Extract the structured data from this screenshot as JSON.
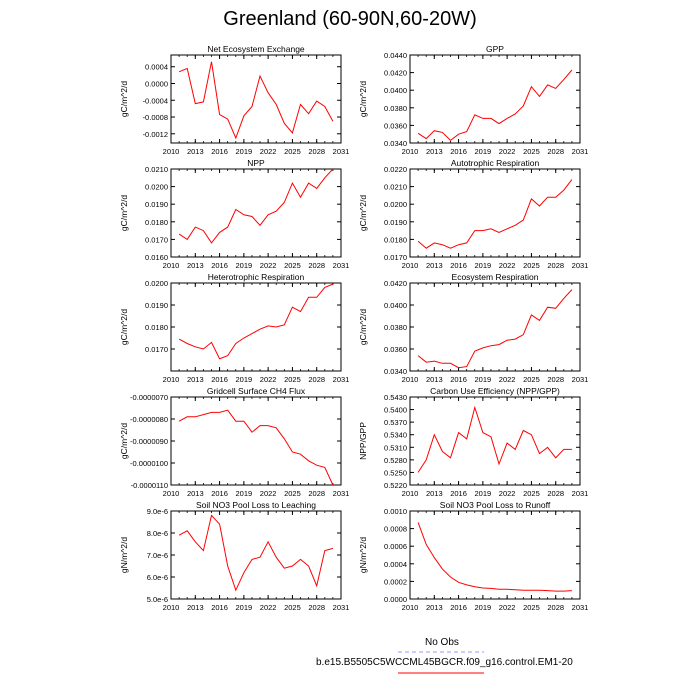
{
  "main_title": "Greenland (60-90N,60-20W)",
  "legend": {
    "obs_label": "No Obs",
    "obs_color": "#9999ff",
    "model_label": "b.e15.B5505C5WCCML45BGCR.f09_g16.control.EM1-20",
    "model_color": "#ff0000"
  },
  "chart_data": [
    {
      "type": "line",
      "title": "Net Ecosystem Exchange",
      "xlabel": "",
      "ylabel": "gC/m^2/d",
      "xlim": [
        2010,
        2031
      ],
      "xticks": [
        2010,
        2013,
        2016,
        2019,
        2022,
        2025,
        2028,
        2031
      ],
      "ylim": [
        -0.00142,
        0.00068
      ],
      "yticks": [
        0.0004,
        0.0,
        -0.0004,
        -0.0008,
        -0.0012
      ],
      "ytick_labels": [
        "0.0004",
        "0.0000",
        "-0.0004",
        "-0.0008",
        "-0.0012"
      ],
      "x": [
        2011,
        2012,
        2013,
        2014,
        2015,
        2016,
        2017,
        2018,
        2019,
        2020,
        2021,
        2022,
        2023,
        2024,
        2025,
        2026,
        2027,
        2028,
        2029,
        2030
      ],
      "series": [
        {
          "name": "b.e15.B5505C5WCCML45BGCR.f09_g16.control.EM1-20",
          "values": [
            0.00028,
            0.00036,
            -0.00048,
            -0.00044,
            0.00052,
            -0.00074,
            -0.00085,
            -0.0013,
            -0.00077,
            -0.00055,
            0.00018,
            -0.00022,
            -0.0005,
            -0.00095,
            -0.00118,
            -0.0005,
            -0.00072,
            -0.00042,
            -0.00055,
            -0.0009
          ]
        }
      ]
    },
    {
      "type": "line",
      "title": "GPP",
      "xlabel": "",
      "ylabel": "gC/m^2/d",
      "xlim": [
        2010,
        2031
      ],
      "xticks": [
        2010,
        2013,
        2016,
        2019,
        2022,
        2025,
        2028,
        2031
      ],
      "ylim": [
        0.034,
        0.044
      ],
      "yticks": [
        0.044,
        0.042,
        0.04,
        0.038,
        0.036,
        0.034
      ],
      "ytick_labels": [
        "0.0440",
        "0.0420",
        "0.0400",
        "0.0380",
        "0.0360",
        "0.0340"
      ],
      "x": [
        2011,
        2012,
        2013,
        2014,
        2015,
        2016,
        2017,
        2018,
        2019,
        2020,
        2021,
        2022,
        2023,
        2024,
        2025,
        2026,
        2027,
        2028,
        2029,
        2030
      ],
      "series": [
        {
          "name": "b.e15.B5505C5WCCML45BGCR.f09_g16.control.EM1-20",
          "values": [
            0.0351,
            0.0345,
            0.0354,
            0.0352,
            0.0343,
            0.035,
            0.0353,
            0.0372,
            0.0368,
            0.0368,
            0.0362,
            0.0368,
            0.0373,
            0.0382,
            0.0404,
            0.0393,
            0.0406,
            0.0402,
            0.0412,
            0.0423
          ]
        }
      ]
    },
    {
      "type": "line",
      "title": "NPP",
      "xlabel": "",
      "ylabel": "gC/m^2/d",
      "xlim": [
        2010,
        2031
      ],
      "xticks": [
        2010,
        2013,
        2016,
        2019,
        2022,
        2025,
        2028,
        2031
      ],
      "ylim": [
        0.016,
        0.021
      ],
      "yticks": [
        0.021,
        0.02,
        0.019,
        0.018,
        0.017,
        0.016
      ],
      "ytick_labels": [
        "0.0210",
        "0.0200",
        "0.0190",
        "0.0180",
        "0.0170",
        "0.0160"
      ],
      "x": [
        2011,
        2012,
        2013,
        2014,
        2015,
        2016,
        2017,
        2018,
        2019,
        2020,
        2021,
        2022,
        2023,
        2024,
        2025,
        2026,
        2027,
        2028,
        2029,
        2030
      ],
      "series": [
        {
          "name": "b.e15.B5505C5WCCML45BGCR.f09_g16.control.EM1-20",
          "values": [
            0.0173,
            0.017,
            0.0177,
            0.0175,
            0.0168,
            0.0174,
            0.0177,
            0.0187,
            0.0184,
            0.0183,
            0.0178,
            0.0184,
            0.0186,
            0.0191,
            0.0202,
            0.0194,
            0.0202,
            0.0199,
            0.0205,
            0.021
          ]
        }
      ]
    },
    {
      "type": "line",
      "title": "Autotrophic Respiration",
      "xlabel": "",
      "ylabel": "gC/m^2/d",
      "xlim": [
        2010,
        2031
      ],
      "xticks": [
        2010,
        2013,
        2016,
        2019,
        2022,
        2025,
        2028,
        2031
      ],
      "ylim": [
        0.017,
        0.022
      ],
      "yticks": [
        0.022,
        0.021,
        0.02,
        0.019,
        0.018,
        0.017
      ],
      "ytick_labels": [
        "0.0220",
        "0.0210",
        "0.0200",
        "0.0190",
        "0.0180",
        "0.0170"
      ],
      "x": [
        2011,
        2012,
        2013,
        2014,
        2015,
        2016,
        2017,
        2018,
        2019,
        2020,
        2021,
        2022,
        2023,
        2024,
        2025,
        2026,
        2027,
        2028,
        2029,
        2030
      ],
      "series": [
        {
          "name": "b.e15.B5505C5WCCML45BGCR.f09_g16.control.EM1-20",
          "values": [
            0.0179,
            0.0175,
            0.0178,
            0.0177,
            0.0175,
            0.0177,
            0.0178,
            0.0185,
            0.0185,
            0.0186,
            0.0184,
            0.0186,
            0.0188,
            0.0191,
            0.0203,
            0.0199,
            0.0204,
            0.0204,
            0.0208,
            0.0214
          ]
        }
      ]
    },
    {
      "type": "line",
      "title": "Heterotrophic Respiration",
      "xlabel": "",
      "ylabel": "gC/m^2/d",
      "xlim": [
        2010,
        2031
      ],
      "xticks": [
        2010,
        2013,
        2016,
        2019,
        2022,
        2025,
        2028,
        2031
      ],
      "ylim": [
        0.016,
        0.02
      ],
      "yticks": [
        0.02,
        0.019,
        0.018,
        0.017
      ],
      "ytick_labels": [
        "0.0200",
        "0.0190",
        "0.0180",
        "0.0170"
      ],
      "x": [
        2011,
        2012,
        2013,
        2014,
        2015,
        2016,
        2017,
        2018,
        2019,
        2020,
        2021,
        2022,
        2023,
        2024,
        2025,
        2026,
        2027,
        2028,
        2029,
        2030
      ],
      "series": [
        {
          "name": "b.e15.B5505C5WCCML45BGCR.f09_g16.control.EM1-20",
          "values": [
            0.01745,
            0.01725,
            0.0171,
            0.017,
            0.0173,
            0.01655,
            0.0167,
            0.01725,
            0.0175,
            0.0177,
            0.0179,
            0.01805,
            0.018,
            0.0181,
            0.0189,
            0.0187,
            0.01935,
            0.01935,
            0.0198,
            0.01995
          ]
        }
      ]
    },
    {
      "type": "line",
      "title": "Ecosystem Respiration",
      "xlabel": "",
      "ylabel": "gC/m^2/d",
      "xlim": [
        2010,
        2031
      ],
      "xticks": [
        2010,
        2013,
        2016,
        2019,
        2022,
        2025,
        2028,
        2031
      ],
      "ylim": [
        0.034,
        0.042
      ],
      "yticks": [
        0.042,
        0.04,
        0.038,
        0.036,
        0.034
      ],
      "ytick_labels": [
        "0.0420",
        "0.0400",
        "0.0380",
        "0.0360",
        "0.0340"
      ],
      "x": [
        2011,
        2012,
        2013,
        2014,
        2015,
        2016,
        2017,
        2018,
        2019,
        2020,
        2021,
        2022,
        2023,
        2024,
        2025,
        2026,
        2027,
        2028,
        2029,
        2030
      ],
      "series": [
        {
          "name": "b.e15.B5505C5WCCML45BGCR.f09_g16.control.EM1-20",
          "values": [
            0.0354,
            0.0348,
            0.0349,
            0.0347,
            0.0347,
            0.0343,
            0.0344,
            0.0358,
            0.0361,
            0.0363,
            0.0364,
            0.0368,
            0.0369,
            0.0373,
            0.0391,
            0.0386,
            0.0398,
            0.0397,
            0.0406,
            0.0414
          ]
        }
      ]
    },
    {
      "type": "line",
      "title": "Gridcell Surface CH4 Flux",
      "xlabel": "",
      "ylabel": "gC/m^2/d",
      "xlim": [
        2010,
        2031
      ],
      "xticks": [
        2010,
        2013,
        2016,
        2019,
        2022,
        2025,
        2028,
        2031
      ],
      "ylim": [
        -1.1e-05,
        -7e-06
      ],
      "yticks": [
        -7e-06,
        -8e-06,
        -9e-06,
        -1e-05,
        -1.1e-05
      ],
      "ytick_labels": [
        "-0.0000070",
        "-0.0000080",
        "-0.0000090",
        "-0.0000100",
        "-0.0000110"
      ],
      "x": [
        2011,
        2012,
        2013,
        2014,
        2015,
        2016,
        2017,
        2018,
        2019,
        2020,
        2021,
        2022,
        2023,
        2024,
        2025,
        2026,
        2027,
        2028,
        2029,
        2030
      ],
      "series": [
        {
          "name": "b.e15.B5505C5WCCML45BGCR.f09_g16.control.EM1-20",
          "values": [
            -8.1e-06,
            -7.9e-06,
            -7.9e-06,
            -7.8e-06,
            -7.7e-06,
            -7.7e-06,
            -7.6e-06,
            -8.1e-06,
            -8.1e-06,
            -8.6e-06,
            -8.3e-06,
            -8.3e-06,
            -8.4e-06,
            -8.9e-06,
            -9.5e-06,
            -9.6e-06,
            -9.9e-06,
            -1.01e-05,
            -1.02e-05,
            -1.1e-05
          ]
        }
      ]
    },
    {
      "type": "line",
      "title": "Carbon Use Efficiency (NPP/GPP)",
      "xlabel": "",
      "ylabel": "NPP/GPP",
      "xlim": [
        2010,
        2031
      ],
      "xticks": [
        2010,
        2013,
        2016,
        2019,
        2022,
        2025,
        2028,
        2031
      ],
      "ylim": [
        0.522,
        0.543
      ],
      "yticks": [
        0.543,
        0.54,
        0.537,
        0.534,
        0.531,
        0.528,
        0.525,
        0.522
      ],
      "ytick_labels": [
        "0.5430",
        "0.5400",
        "0.5370",
        "0.5340",
        "0.5310",
        "0.5280",
        "0.5250",
        "0.5220"
      ],
      "x": [
        2011,
        2012,
        2013,
        2014,
        2015,
        2016,
        2017,
        2018,
        2019,
        2020,
        2021,
        2022,
        2023,
        2024,
        2025,
        2026,
        2027,
        2028,
        2029,
        2030
      ],
      "series": [
        {
          "name": "b.e15.B5505C5WCCML45BGCR.f09_g16.control.EM1-20",
          "values": [
            0.525,
            0.528,
            0.534,
            0.53,
            0.5285,
            0.5345,
            0.533,
            0.5405,
            0.5345,
            0.5335,
            0.527,
            0.532,
            0.5305,
            0.535,
            0.534,
            0.5295,
            0.531,
            0.5285,
            0.5305,
            0.5305
          ]
        }
      ]
    },
    {
      "type": "line",
      "title": "Soil NO3 Pool Loss to Leaching",
      "xlabel": "",
      "ylabel": "gN/m^2/d",
      "xlim": [
        2010,
        2031
      ],
      "xticks": [
        2010,
        2013,
        2016,
        2019,
        2022,
        2025,
        2028,
        2031
      ],
      "ylim": [
        5e-06,
        9e-06
      ],
      "yticks": [
        9e-06,
        8e-06,
        7e-06,
        6e-06,
        5e-06
      ],
      "ytick_labels": [
        "9.0e-6",
        "8.0e-6",
        "7.0e-6",
        "6.0e-6",
        "5.0e-6"
      ],
      "x": [
        2011,
        2012,
        2013,
        2014,
        2015,
        2016,
        2017,
        2018,
        2019,
        2020,
        2021,
        2022,
        2023,
        2024,
        2025,
        2026,
        2027,
        2028,
        2029,
        2030
      ],
      "series": [
        {
          "name": "b.e15.B5505C5WCCML45BGCR.f09_g16.control.EM1-20",
          "values": [
            7.9e-06,
            8.1e-06,
            7.6e-06,
            7.2e-06,
            8.8e-06,
            8.4e-06,
            6.5e-06,
            5.4e-06,
            6.2e-06,
            6.8e-06,
            6.9e-06,
            7.6e-06,
            6.9e-06,
            6.4e-06,
            6.5e-06,
            6.8e-06,
            6.5e-06,
            5.6e-06,
            7.2e-06,
            7.3e-06
          ]
        }
      ]
    },
    {
      "type": "line",
      "title": "Soil NO3 Pool Loss to Runoff",
      "xlabel": "",
      "ylabel": "gN/m^2/d",
      "xlim": [
        2010,
        2031
      ],
      "xticks": [
        2010,
        2013,
        2016,
        2019,
        2022,
        2025,
        2028,
        2031
      ],
      "ylim": [
        0.0,
        0.001
      ],
      "yticks": [
        0.001,
        0.0008,
        0.0006,
        0.0004,
        0.0002,
        0.0
      ],
      "ytick_labels": [
        "0.0010",
        "0.0008",
        "0.0006",
        "0.0004",
        "0.0002",
        "0.0000"
      ],
      "x": [
        2011,
        2012,
        2013,
        2014,
        2015,
        2016,
        2017,
        2018,
        2019,
        2020,
        2021,
        2022,
        2023,
        2024,
        2025,
        2026,
        2027,
        2028,
        2029,
        2030
      ],
      "series": [
        {
          "name": "b.e15.B5505C5WCCML45BGCR.f09_g16.control.EM1-20",
          "values": [
            0.00087,
            0.00062,
            0.00047,
            0.00034,
            0.00025,
            0.00019,
            0.00016,
            0.00014,
            0.000125,
            0.00012,
            0.00011,
            0.00011,
            0.000105,
            0.0001,
            0.0001,
            0.0001,
            9.5e-05,
            9e-05,
            9e-05,
            9.5e-05
          ]
        }
      ]
    }
  ]
}
